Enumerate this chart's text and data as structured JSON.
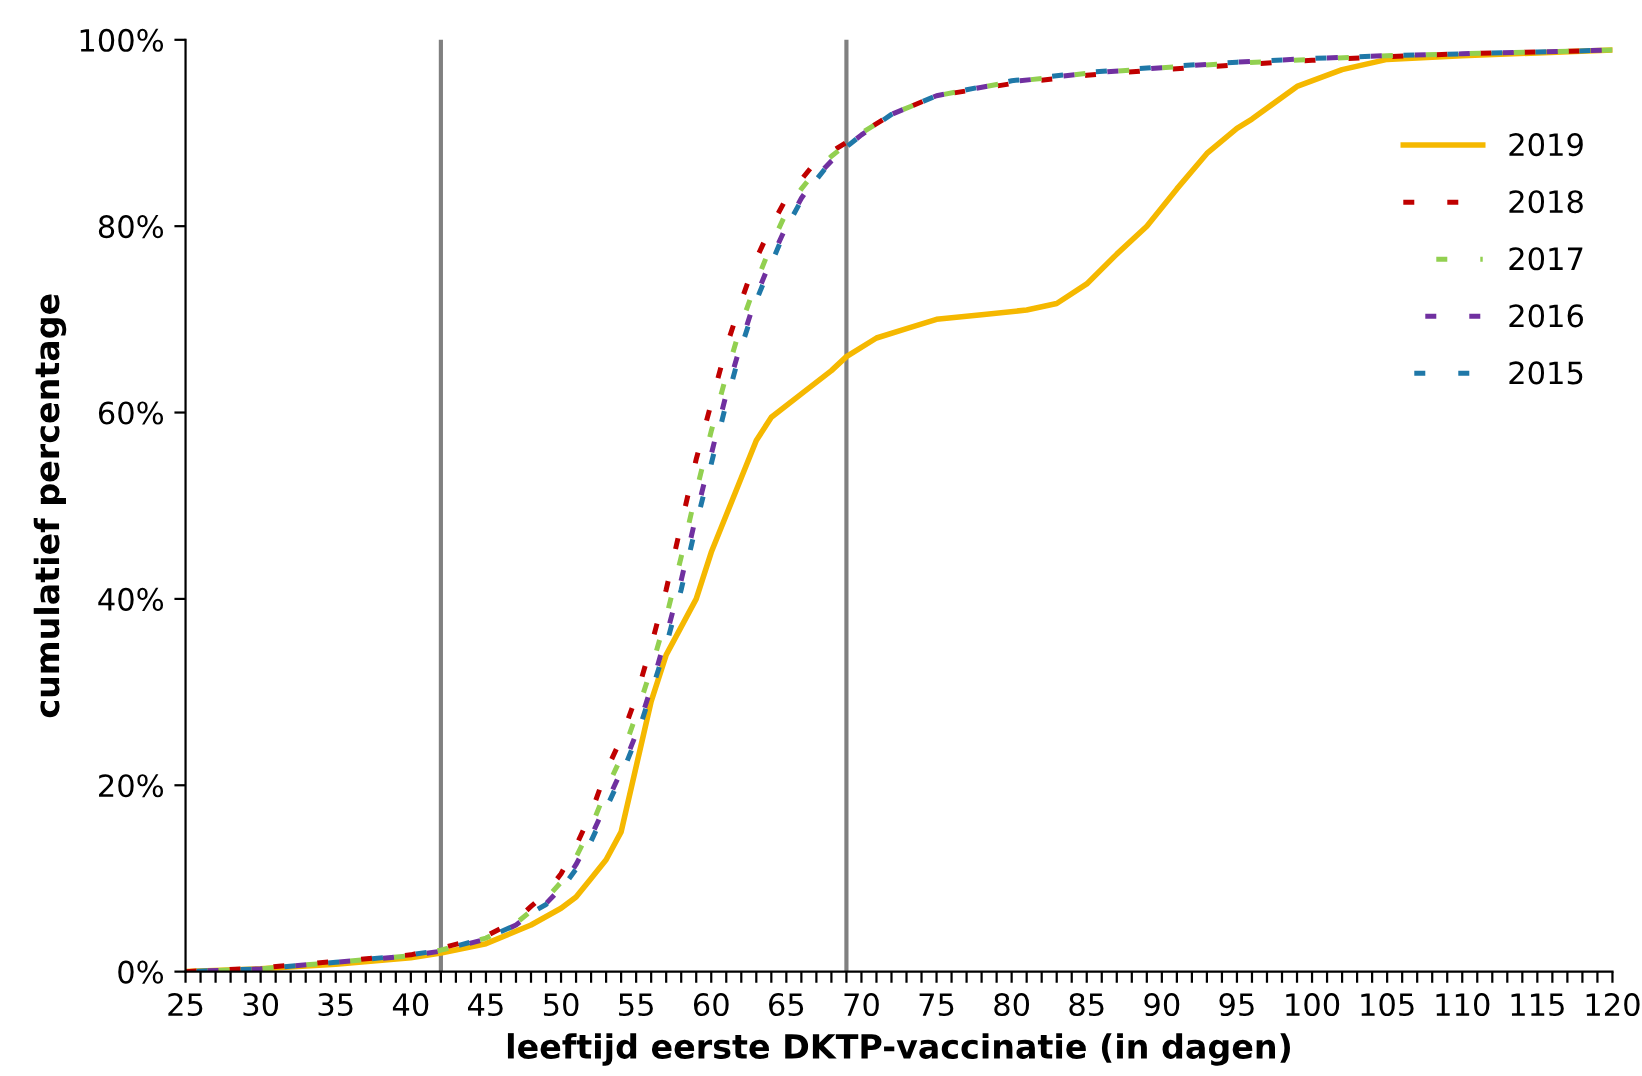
{
  "chart_data": {
    "type": "line",
    "xlabel": "leeftijd eerste DKTP-vaccinatie (in dagen)",
    "ylabel": "cumulatief percentage",
    "x": [
      25,
      30,
      35,
      40,
      42,
      45,
      47,
      48,
      49,
      50,
      51,
      52,
      53,
      54,
      55,
      56,
      57,
      58,
      59,
      60,
      61,
      62,
      63,
      64,
      65,
      66,
      67,
      68,
      69,
      70,
      72,
      75,
      80,
      85,
      90,
      95,
      100,
      105,
      110,
      115,
      120
    ],
    "series": [
      {
        "name": "2019",
        "color": "#f5b800",
        "line_style": "solid",
        "x": [
          25,
          30,
          35,
          40,
          42,
          45,
          48,
          50,
          51,
          52,
          53,
          54,
          55,
          56,
          57,
          58,
          59,
          60,
          61,
          62,
          63,
          64,
          66,
          68,
          69,
          71,
          73,
          75,
          78,
          81,
          83,
          85,
          87,
          89,
          91,
          93,
          95,
          96,
          99,
          102,
          105,
          110,
          115,
          120
        ],
        "values": [
          0,
          0.3,
          0.8,
          1.5,
          2,
          3,
          5,
          6.8,
          8,
          10,
          12,
          15,
          22,
          29,
          34,
          37,
          40,
          45,
          49,
          53,
          57,
          59.5,
          62,
          64.5,
          66,
          68,
          69,
          70,
          70.5,
          71,
          71.7,
          73.8,
          77,
          80,
          84,
          87.8,
          90.5,
          91.5,
          95,
          96.8,
          97.9,
          98.3,
          98.6,
          98.9
        ]
      },
      {
        "name": "2018",
        "color": "#c00000",
        "line_style": "dotted",
        "values": [
          0,
          0.4,
          1.1,
          1.8,
          2.5,
          3.8,
          5.5,
          7,
          8.4,
          10.5,
          13.5,
          17,
          21.5,
          25,
          29.5,
          35,
          41,
          48,
          55,
          61,
          67,
          72,
          76.5,
          80,
          83,
          85,
          87,
          88,
          89,
          90,
          92,
          94,
          95.3,
          96.2,
          96.8,
          97.3,
          97.8,
          98.2,
          98.5,
          98.7,
          98.9
        ]
      },
      {
        "name": "2017",
        "color": "#92d050",
        "line_style": "dotted",
        "values": [
          0,
          0.3,
          1,
          1.7,
          2.3,
          3.6,
          5.2,
          6.5,
          7.8,
          9.6,
          12.3,
          15.5,
          19.5,
          23,
          27.5,
          32.5,
          38,
          44.5,
          51.5,
          58,
          64,
          69.5,
          74,
          78,
          81.5,
          84,
          86,
          87.5,
          88.8,
          90,
          92,
          94,
          95.5,
          96.4,
          97,
          97.5,
          97.9,
          98.3,
          98.5,
          98.7,
          98.9
        ]
      },
      {
        "name": "2016",
        "color": "#7030a0",
        "line_style": "dotted",
        "values": [
          0,
          0.3,
          1,
          1.7,
          2.2,
          3.5,
          5,
          6.2,
          7.3,
          9,
          11.5,
          14.5,
          18,
          21.5,
          25.5,
          30.5,
          36,
          42,
          49,
          55.5,
          62,
          67.5,
          72.5,
          76.5,
          80,
          83,
          85.3,
          87,
          88.5,
          89.8,
          92,
          94,
          95.5,
          96.4,
          97,
          97.6,
          98,
          98.3,
          98.5,
          98.7,
          98.9
        ]
      },
      {
        "name": "2015",
        "color": "#1f78a8",
        "line_style": "dotted",
        "values": [
          0,
          0.3,
          1,
          1.8,
          2.3,
          3.6,
          5,
          6.3,
          7.2,
          8.8,
          11,
          14,
          17.5,
          21,
          25,
          30,
          35,
          41,
          48,
          54.5,
          61,
          67,
          72,
          76,
          79.8,
          82.8,
          85,
          87,
          88.5,
          89.8,
          92,
          94,
          95.6,
          96.5,
          97.1,
          97.6,
          98,
          98.3,
          98.5,
          98.7,
          98.9
        ]
      }
    ],
    "ref_lines": [
      {
        "axis": "x",
        "value": 42,
        "label": null,
        "color": "#808080"
      },
      {
        "axis": "x",
        "value": 69,
        "label": null,
        "color": "#808080"
      }
    ],
    "xlim": [
      25,
      120
    ],
    "xticks": [
      25,
      {
        "value": 26,
        "label": null
      },
      {
        "value": 27,
        "label": null
      },
      {
        "value": 28,
        "label": null
      },
      {
        "value": 29,
        "label": null
      },
      30,
      {
        "value": 31,
        "label": null
      },
      {
        "value": 32,
        "label": null
      },
      {
        "value": 33,
        "label": null
      },
      {
        "value": 34,
        "label": null
      },
      35,
      {
        "value": 36,
        "label": null
      },
      {
        "value": 37,
        "label": null
      },
      {
        "value": 38,
        "label": null
      },
      {
        "value": 39,
        "label": null
      },
      40,
      {
        "value": 41,
        "label": null
      },
      {
        "value": 42,
        "label": null
      },
      {
        "value": 43,
        "label": null
      },
      {
        "value": 44,
        "label": null
      },
      45,
      {
        "value": 46,
        "label": null
      },
      {
        "value": 47,
        "label": null
      },
      {
        "value": 48,
        "label": null
      },
      {
        "value": 49,
        "label": null
      },
      50,
      {
        "value": 51,
        "label": null
      },
      {
        "value": 52,
        "label": null
      },
      {
        "value": 53,
        "label": null
      },
      {
        "value": 54,
        "label": null
      },
      55,
      {
        "value": 56,
        "label": null
      },
      {
        "value": 57,
        "label": null
      },
      {
        "value": 58,
        "label": null
      },
      {
        "value": 59,
        "label": null
      },
      60,
      {
        "value": 61,
        "label": null
      },
      {
        "value": 62,
        "label": null
      },
      {
        "value": 63,
        "label": null
      },
      {
        "value": 64,
        "label": null
      },
      65,
      {
        "value": 66,
        "label": null
      },
      {
        "value": 67,
        "label": null
      },
      {
        "value": 68,
        "label": null
      },
      {
        "value": 69,
        "label": null
      },
      70,
      {
        "value": 71,
        "label": null
      },
      {
        "value": 72,
        "label": null
      },
      {
        "value": 73,
        "label": null
      },
      {
        "value": 74,
        "label": null
      },
      75,
      {
        "value": 76,
        "label": null
      },
      {
        "value": 77,
        "label": null
      },
      {
        "value": 78,
        "label": null
      },
      {
        "value": 79,
        "label": null
      },
      80,
      {
        "value": 81,
        "label": null
      },
      {
        "value": 82,
        "label": null
      },
      {
        "value": 83,
        "label": null
      },
      {
        "value": 84,
        "label": null
      },
      85,
      {
        "value": 86,
        "label": null
      },
      {
        "value": 87,
        "label": null
      },
      {
        "value": 88,
        "label": null
      },
      {
        "value": 89,
        "label": null
      },
      90,
      {
        "value": 91,
        "label": null
      },
      {
        "value": 92,
        "label": null
      },
      {
        "value": 93,
        "label": null
      },
      {
        "value": 94,
        "label": null
      },
      95,
      {
        "value": 96,
        "label": null
      },
      {
        "value": 97,
        "label": null
      },
      {
        "value": 98,
        "label": null
      },
      {
        "value": 99,
        "label": null
      },
      100,
      {
        "value": 101,
        "label": null
      },
      {
        "value": 102,
        "label": null
      },
      {
        "value": 103,
        "label": null
      },
      {
        "value": 104,
        "label": null
      },
      105,
      {
        "value": 106,
        "label": null
      },
      {
        "value": 107,
        "label": null
      },
      {
        "value": 108,
        "label": null
      },
      {
        "value": 109,
        "label": null
      },
      110,
      {
        "value": 111,
        "label": null
      },
      {
        "value": 112,
        "label": null
      },
      {
        "value": 113,
        "label": null
      },
      {
        "value": 114,
        "label": null
      },
      115,
      {
        "value": 116,
        "label": null
      },
      {
        "value": 117,
        "label": null
      },
      {
        "value": 118,
        "label": null
      },
      {
        "value": 119,
        "label": null
      },
      120
    ],
    "ylim": [
      0,
      100
    ],
    "yticks": [
      {
        "value": 0,
        "label": "0%"
      },
      {
        "value": 20,
        "label": "20%"
      },
      {
        "value": 40,
        "label": "40%"
      },
      {
        "value": 60,
        "label": "60%"
      },
      {
        "value": 80,
        "label": "80%"
      },
      {
        "value": 100,
        "label": "100%"
      }
    ],
    "grid": false,
    "legend": "top right"
  }
}
